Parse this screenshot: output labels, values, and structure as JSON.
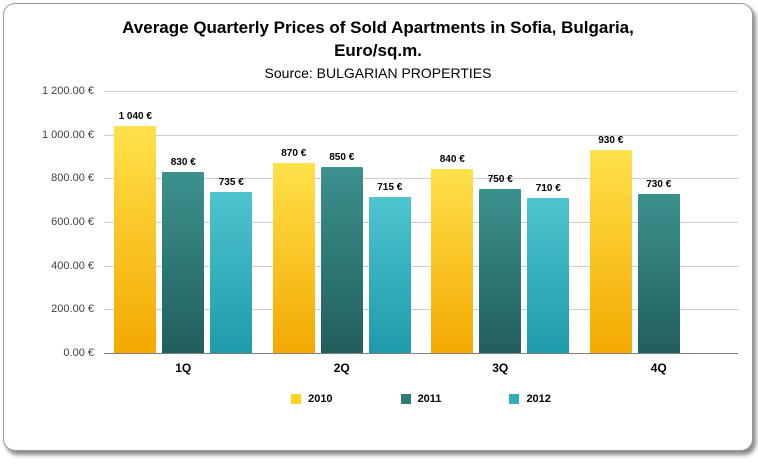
{
  "title_line1": "Average Quarterly Prices of Sold Apartments in Sofia, Bulgaria,",
  "title_line2": "Euro/sq.m.",
  "subtitle": "Source: BULGARIAN PROPERTIES",
  "chart_data": {
    "type": "bar",
    "categories": [
      "1Q",
      "2Q",
      "3Q",
      "4Q"
    ],
    "series": [
      {
        "name": "2010",
        "values": [
          1040,
          870,
          840,
          930
        ],
        "labels": [
          "1 040 €",
          "870 €",
          "840 €",
          "930 €"
        ],
        "color_top": "#FFE14A",
        "color_bottom": "#F3A900",
        "color": "#FFD21E"
      },
      {
        "name": "2011",
        "values": [
          830,
          850,
          750,
          730
        ],
        "labels": [
          "830 €",
          "850 €",
          "750 €",
          "730 €"
        ],
        "color_top": "#3C918D",
        "color_bottom": "#215F5C",
        "color": "#2E7B78"
      },
      {
        "name": "2012",
        "values": [
          735,
          715,
          710,
          null
        ],
        "labels": [
          "735 €",
          "715 €",
          "710 €",
          null
        ],
        "color_top": "#4EC4CF",
        "color_bottom": "#1E9BAB",
        "color": "#35AEBC"
      }
    ],
    "ylim": [
      0,
      1200
    ],
    "ytick_step": 200,
    "ytick_labels": [
      "1 200.00 €",
      "1 000.00 €",
      "800.00 €",
      "600.00 €",
      "400.00 €",
      "200.00 €",
      "0.00 €"
    ],
    "grid": true,
    "legend_position": "bottom",
    "xlabel": "",
    "ylabel": ""
  }
}
